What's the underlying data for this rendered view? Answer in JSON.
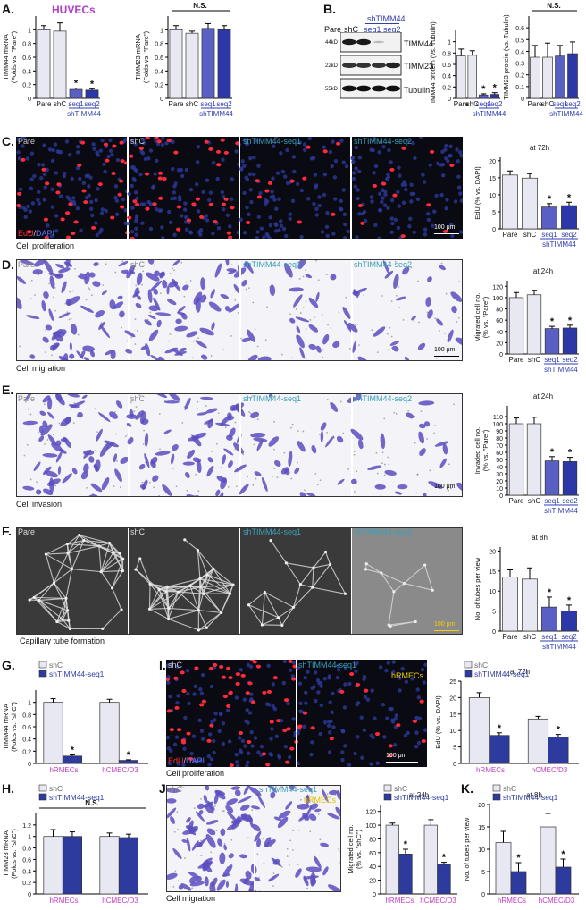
{
  "panels": {
    "A": {
      "label": "A.",
      "title": "HUVECs"
    },
    "B": {
      "label": "B."
    },
    "C": {
      "label": "C.",
      "caption": "Cell proliferation",
      "titles": [
        "Pare",
        "shC",
        "shTIMM44-seq1",
        "shTIMM44-seq2"
      ],
      "stain_a": "EdU",
      "stain_sep": "/",
      "stain_b": "DAPI",
      "scale": "100 μm"
    },
    "D": {
      "label": "D.",
      "caption": "Cell migration",
      "titles": [
        "Pare",
        "shC",
        "shTIMM44-seq1",
        "shTIMM44-seq2"
      ],
      "scale": "100 μm"
    },
    "E": {
      "label": "E.",
      "caption": "Cell invasion",
      "titles": [
        "Pare",
        "shC",
        "shTIMM44-seq1",
        "shTIMM44-seq2"
      ],
      "scale": "100 μm"
    },
    "F": {
      "label": "F.",
      "caption": "Capillary tube formation",
      "titles": [
        "Pare",
        "shC",
        "shTIMM44-seq1",
        "shTIMM44-seq2"
      ],
      "scale": "100 μm"
    },
    "G": {
      "label": "G."
    },
    "H": {
      "label": "H."
    },
    "I": {
      "label": "I.",
      "caption": "Cell proliferation",
      "titles": [
        "shC",
        "shTIMM44-seq1"
      ],
      "cell": "hRMECs",
      "stain_a": "EdU",
      "stain_sep": "/",
      "stain_b": "DAPI",
      "scale": "100 μm"
    },
    "J": {
      "label": "J.",
      "caption": "Cell migration",
      "titles": [
        "shC",
        "shTIMM44-seq1"
      ],
      "cell": "hRMECs"
    },
    "K": {
      "label": "K."
    }
  },
  "blot": {
    "group_label": "shTIMM44",
    "lanes": [
      "Pare",
      "shC",
      "seq1",
      "seq2"
    ],
    "bands": [
      {
        "name": "TIMM44",
        "kd": "44kD"
      },
      {
        "name": "TIMM23",
        "kd": "22kD"
      },
      {
        "name": "Tubulin",
        "kd": "55kD"
      }
    ]
  },
  "colors": {
    "light": "#e8e8f2",
    "mid": "#5a5fc4",
    "dark": "#2c38a8",
    "group": "#2e3db0",
    "legend_dark": "#2d3a9e",
    "axis_magenta": "#c03cc0",
    "title_teal": "#3aa0b8"
  },
  "chart_data": [
    {
      "id": "A1",
      "type": "bar",
      "categories": [
        "Pare",
        "shC",
        "seq1",
        "seq2"
      ],
      "group_label": "shTIMM44",
      "values": [
        1.0,
        0.98,
        0.13,
        0.12
      ],
      "errors": [
        0.06,
        0.12,
        0.02,
        0.02
      ],
      "ylim": [
        0,
        1.2
      ],
      "yticks": [
        0,
        0.2,
        0.4,
        0.6,
        0.8,
        1.0
      ],
      "ytick_labels": [
        "0",
        "0.2",
        "0.4",
        "0.6",
        "0.8",
        "1"
      ],
      "ylabel": [
        "TIMM44  mRNA",
        "(Folds vs. \"Pare\")"
      ],
      "sig": [
        "",
        "",
        "*",
        "*"
      ],
      "ns": ""
    },
    {
      "id": "A2",
      "type": "bar",
      "categories": [
        "Pare",
        "shC",
        "seq1",
        "seq2"
      ],
      "group_label": "shTIMM44",
      "values": [
        1.0,
        0.95,
        1.02,
        1.0
      ],
      "errors": [
        0.06,
        0.03,
        0.07,
        0.06
      ],
      "ylim": [
        0,
        1.2
      ],
      "yticks": [
        0,
        0.2,
        0.4,
        0.6,
        0.8,
        1.0
      ],
      "ytick_labels": [
        "0",
        "0.2",
        "0.4",
        "0.6",
        "0.8",
        "1"
      ],
      "ylabel": [
        "TIMM23  mRNA",
        "(Folds vs. \"Pare\")"
      ],
      "sig": [
        "",
        "",
        "",
        ""
      ],
      "ns": "N.S."
    },
    {
      "id": "B1",
      "type": "bar",
      "categories": [
        "Pare",
        "shC",
        "seq1",
        "seq2"
      ],
      "group_label": "shTIMM44",
      "values": [
        0.75,
        0.76,
        0.06,
        0.07
      ],
      "errors": [
        0.12,
        0.08,
        0.02,
        0.03
      ],
      "ylim": [
        0,
        1.2
      ],
      "yticks": [
        0,
        0.2,
        0.4,
        0.6,
        0.8,
        1.0
      ],
      "ytick_labels": [
        "0",
        "0.2",
        "0.4",
        "0.6",
        "0.8",
        "1"
      ],
      "ylabel": [
        "TIMM44 protein (vs. Tubulin)"
      ],
      "sig": [
        "",
        "",
        "*",
        "*"
      ],
      "ns": ""
    },
    {
      "id": "B2",
      "type": "bar",
      "categories": [
        "Pare",
        "shC",
        "seq1",
        "seq2"
      ],
      "group_label": "shTIMM44",
      "values": [
        0.35,
        0.35,
        0.36,
        0.38
      ],
      "errors": [
        0.1,
        0.12,
        0.09,
        0.1
      ],
      "ylim": [
        0,
        0.7
      ],
      "yticks": [
        0,
        0.1,
        0.2,
        0.3,
        0.4,
        0.5,
        0.6
      ],
      "ytick_labels": [
        "0",
        "0.1",
        "0.2",
        "0.3",
        "0.4",
        "0.5",
        "0.6"
      ],
      "ylabel": [
        "TIMM23 protein (vs. Tubulin)"
      ],
      "sig": [
        "",
        "",
        "",
        ""
      ],
      "ns": "N.S."
    },
    {
      "id": "C",
      "type": "bar",
      "categories": [
        "Pare",
        "shC",
        "seq1",
        "seq2"
      ],
      "group_label": "shTIMM44",
      "values": [
        15.8,
        14.9,
        6.4,
        6.8
      ],
      "errors": [
        1.2,
        1.3,
        1.0,
        1.0
      ],
      "ylim": [
        0,
        21
      ],
      "yticks": [
        0,
        5,
        10,
        15,
        20
      ],
      "ytick_labels": [
        "0",
        "5",
        "10",
        "15",
        "20"
      ],
      "ylabel": [
        "EdU (% vs. DAPI)"
      ],
      "sig": [
        "",
        "",
        "*",
        "*"
      ],
      "note": "at 72h",
      "ns": ""
    },
    {
      "id": "D",
      "type": "bar",
      "categories": [
        "Pare",
        "shC",
        "seq1",
        "seq2"
      ],
      "group_label": "shTIMM44",
      "values": [
        100,
        105,
        45,
        46
      ],
      "errors": [
        9,
        8,
        4,
        5
      ],
      "ylim": [
        0,
        130
      ],
      "yticks": [
        0,
        20,
        40,
        60,
        80,
        100,
        120
      ],
      "ytick_labels": [
        "0",
        "20",
        "40",
        "60",
        "80",
        "100",
        "120"
      ],
      "ylabel": [
        "Migrated cell no.",
        "(% vs. \"Pare\")"
      ],
      "sig": [
        "",
        "",
        "*",
        "*"
      ],
      "note": "at 24h",
      "ns": ""
    },
    {
      "id": "E",
      "type": "bar",
      "categories": [
        "Pare",
        "shC",
        "seq1",
        "seq2"
      ],
      "group_label": "shTIMM44",
      "values": [
        100,
        100,
        48,
        47
      ],
      "errors": [
        8,
        9,
        6,
        6
      ],
      "ylim": [
        0,
        125
      ],
      "yticks": [
        0,
        10,
        20,
        30,
        40,
        50,
        60,
        70,
        80,
        90,
        100,
        110
      ],
      "ytick_labels": [
        "0",
        "10",
        "20",
        "30",
        "40",
        "50",
        "60",
        "70",
        "80",
        "90",
        "100",
        "110"
      ],
      "ylabel": [
        "Invaded cell no.",
        "(% vs. \"Pare\")"
      ],
      "sig": [
        "",
        "",
        "*",
        "*"
      ],
      "note": "at 24h",
      "ns": ""
    },
    {
      "id": "F",
      "type": "bar",
      "categories": [
        "Pare",
        "shC",
        "seq1",
        "seq2"
      ],
      "group_label": "shTIMM44",
      "values": [
        13.5,
        13.0,
        6.0,
        5.0
      ],
      "errors": [
        1.8,
        2.8,
        2.5,
        1.5
      ],
      "ylim": [
        0,
        21
      ],
      "yticks": [
        0,
        5,
        10,
        15,
        20
      ],
      "ytick_labels": [
        "0",
        "5",
        "10",
        "15",
        "20"
      ],
      "ylabel": [
        "No. of tubes per view"
      ],
      "sig": [
        "",
        "",
        "*",
        "*"
      ],
      "note": "at 8h",
      "ns": ""
    },
    {
      "id": "G",
      "type": "grouped_bar",
      "groups": [
        "hRMECs",
        "hCMEC/D3"
      ],
      "series": [
        {
          "name": "shC",
          "values": [
            1.0,
            1.0
          ],
          "errors": [
            0.06,
            0.05
          ]
        },
        {
          "name": "shTIMM44-seq1",
          "values": [
            0.12,
            0.05
          ],
          "errors": [
            0.02,
            0.01
          ]
        }
      ],
      "ylim": [
        0,
        1.2
      ],
      "yticks": [
        0,
        0.2,
        0.4,
        0.6,
        0.8,
        1.0
      ],
      "ytick_labels": [
        "0",
        "0.2",
        "0.4",
        "0.6",
        "0.8",
        "1"
      ],
      "ylabel": [
        "TIMM44  mRNA",
        "(Folds vs. \"shC\")"
      ],
      "sig": [
        "*",
        "*"
      ],
      "ns": ""
    },
    {
      "id": "H",
      "type": "grouped_bar",
      "groups": [
        "hRMECs",
        "hCMEC/D3"
      ],
      "series": [
        {
          "name": "shC",
          "values": [
            1.0,
            1.0
          ],
          "errors": [
            0.12,
            0.06
          ]
        },
        {
          "name": "shTIMM44-seq1",
          "values": [
            1.0,
            0.98
          ],
          "errors": [
            0.08,
            0.06
          ]
        }
      ],
      "ylim": [
        0,
        1.4
      ],
      "yticks": [
        0,
        0.2,
        0.4,
        0.6,
        0.8,
        1.0,
        1.2
      ],
      "ytick_labels": [
        "0",
        "0.2",
        "0.4",
        "0.6",
        "0.8",
        "1",
        "1.2"
      ],
      "ylabel": [
        "TIMM23  mRNA",
        "(Folds vs. \"shC\")"
      ],
      "sig": [
        "",
        ""
      ],
      "ns": "N.S."
    },
    {
      "id": "I",
      "type": "grouped_bar",
      "groups": [
        "hRMECs",
        "hCMEC/D3"
      ],
      "series": [
        {
          "name": "shC",
          "values": [
            20,
            13.5
          ],
          "errors": [
            1.5,
            0.8
          ]
        },
        {
          "name": "shTIMM44-seq1",
          "values": [
            8.5,
            8.0
          ],
          "errors": [
            0.8,
            0.8
          ]
        }
      ],
      "ylim": [
        0,
        25
      ],
      "yticks": [
        0,
        5,
        10,
        15,
        20,
        25
      ],
      "ytick_labels": [
        "0",
        "5",
        "10",
        "15",
        "20",
        "25"
      ],
      "ylabel": [
        "EdU (% vs. DAPI)"
      ],
      "sig": [
        "*",
        "*"
      ],
      "note": "at 72h",
      "ns": ""
    },
    {
      "id": "J",
      "type": "grouped_bar",
      "groups": [
        "hRMECs",
        "hCMEC/D3"
      ],
      "series": [
        {
          "name": "shC",
          "values": [
            100,
            100
          ],
          "errors": [
            3,
            8
          ]
        },
        {
          "name": "shTIMM44-seq1",
          "values": [
            58,
            43
          ],
          "errors": [
            7,
            3
          ]
        }
      ],
      "ylim": [
        0,
        130
      ],
      "yticks": [
        0,
        20,
        40,
        60,
        80,
        100,
        120
      ],
      "ytick_labels": [
        "0",
        "20",
        "40",
        "60",
        "80",
        "100",
        "120"
      ],
      "ylabel": [
        "Migrated cell no.",
        "(% vs. \"shC\")"
      ],
      "sig": [
        "*",
        "*"
      ],
      "note": "at 24h",
      "ns": ""
    },
    {
      "id": "K",
      "type": "grouped_bar",
      "groups": [
        "hRMECs",
        "hCMEC/D3"
      ],
      "series": [
        {
          "name": "shC",
          "values": [
            11.5,
            15.0
          ],
          "errors": [
            2.5,
            3.0
          ]
        },
        {
          "name": "shTIMM44-seq1",
          "values": [
            5.0,
            6.0
          ],
          "errors": [
            2.0,
            1.8
          ]
        }
      ],
      "ylim": [
        0,
        20
      ],
      "yticks": [
        0,
        5,
        10,
        15,
        20
      ],
      "ytick_labels": [
        "0",
        "5",
        "10",
        "15",
        "20"
      ],
      "ylabel": [
        "No. of tubes per view"
      ],
      "sig": [
        "*",
        "*"
      ],
      "note": "at 8h",
      "ns": ""
    }
  ]
}
